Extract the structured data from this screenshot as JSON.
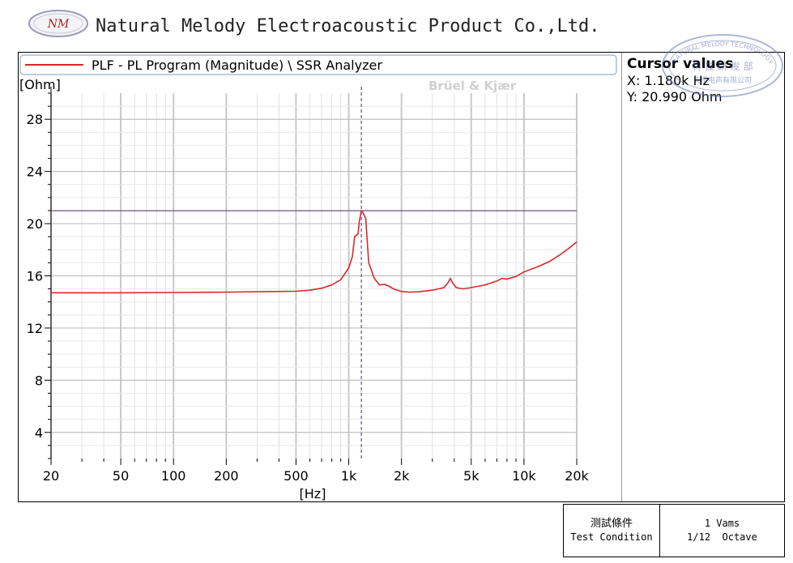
{
  "header": {
    "logo_text": "NM",
    "company_name": "Natural Melody Electroacoustic Product Co.,Ltd."
  },
  "stamp": {
    "text_top": "NATURAL MELODY TECHNOLOGY",
    "text_mid": "科 技 研 发 部",
    "text_bottom": "天乐电声有限公司"
  },
  "cursor": {
    "title": "Cursor values",
    "x_text": "X: 1.180k Hz",
    "y_text": "Y: 20.990 Ohm",
    "x_value": 1180,
    "y_value": 20.99
  },
  "test_condition": {
    "label_cn": "测試條件",
    "label_en": "Test Condition",
    "value_line1": "1 Vams",
    "value_line2": "1/12  Octave"
  },
  "chart_data": {
    "type": "line",
    "title": "PLF - PL Program (Magnitude) \\ SSR Analyzer",
    "watermark": "Brüel & Kjær",
    "xlabel": "[Hz]",
    "ylabel": "[Ohm]",
    "x_scale": "log",
    "xlim": [
      20,
      20000
    ],
    "ylim": [
      2,
      30
    ],
    "grid": true,
    "x_ticks": [
      20,
      50,
      100,
      200,
      500,
      1000,
      2000,
      5000,
      10000,
      20000
    ],
    "x_tick_labels": [
      "20",
      "50",
      "100",
      "200",
      "500",
      "1k",
      "2k",
      "5k",
      "10k",
      "20k"
    ],
    "y_ticks": [
      4,
      8,
      12,
      16,
      20,
      24,
      28
    ],
    "y_tick_labels": [
      "4",
      "8",
      "12",
      "16",
      "20",
      "24",
      "28"
    ],
    "series_color": "#d42a2a",
    "cursor_line_color": "#4b2a6b",
    "series": [
      {
        "name": "PLF - PL Program (Magnitude) \\ SSR Analyzer",
        "x": [
          20,
          50,
          100,
          200,
          400,
          500,
          600,
          700,
          800,
          900,
          1000,
          1050,
          1080,
          1100,
          1130,
          1150,
          1180,
          1200,
          1250,
          1300,
          1400,
          1500,
          1600,
          1700,
          1800,
          2000,
          2200,
          2500,
          3000,
          3500,
          3700,
          3800,
          3900,
          4100,
          4500,
          5000,
          6000,
          7000,
          7500,
          8000,
          9000,
          10000,
          12000,
          14000,
          16000,
          18000,
          20000
        ],
        "y": [
          14.7,
          14.7,
          14.72,
          14.75,
          14.8,
          14.82,
          14.9,
          15.05,
          15.3,
          15.7,
          16.6,
          17.5,
          19.0,
          19.1,
          19.2,
          20.2,
          20.99,
          20.9,
          20.4,
          17.0,
          15.8,
          15.3,
          15.35,
          15.2,
          15.0,
          14.8,
          14.75,
          14.78,
          14.9,
          15.1,
          15.5,
          15.8,
          15.5,
          15.1,
          15.0,
          15.1,
          15.3,
          15.6,
          15.8,
          15.75,
          15.95,
          16.3,
          16.7,
          17.1,
          17.6,
          18.1,
          18.6
        ]
      }
    ]
  }
}
